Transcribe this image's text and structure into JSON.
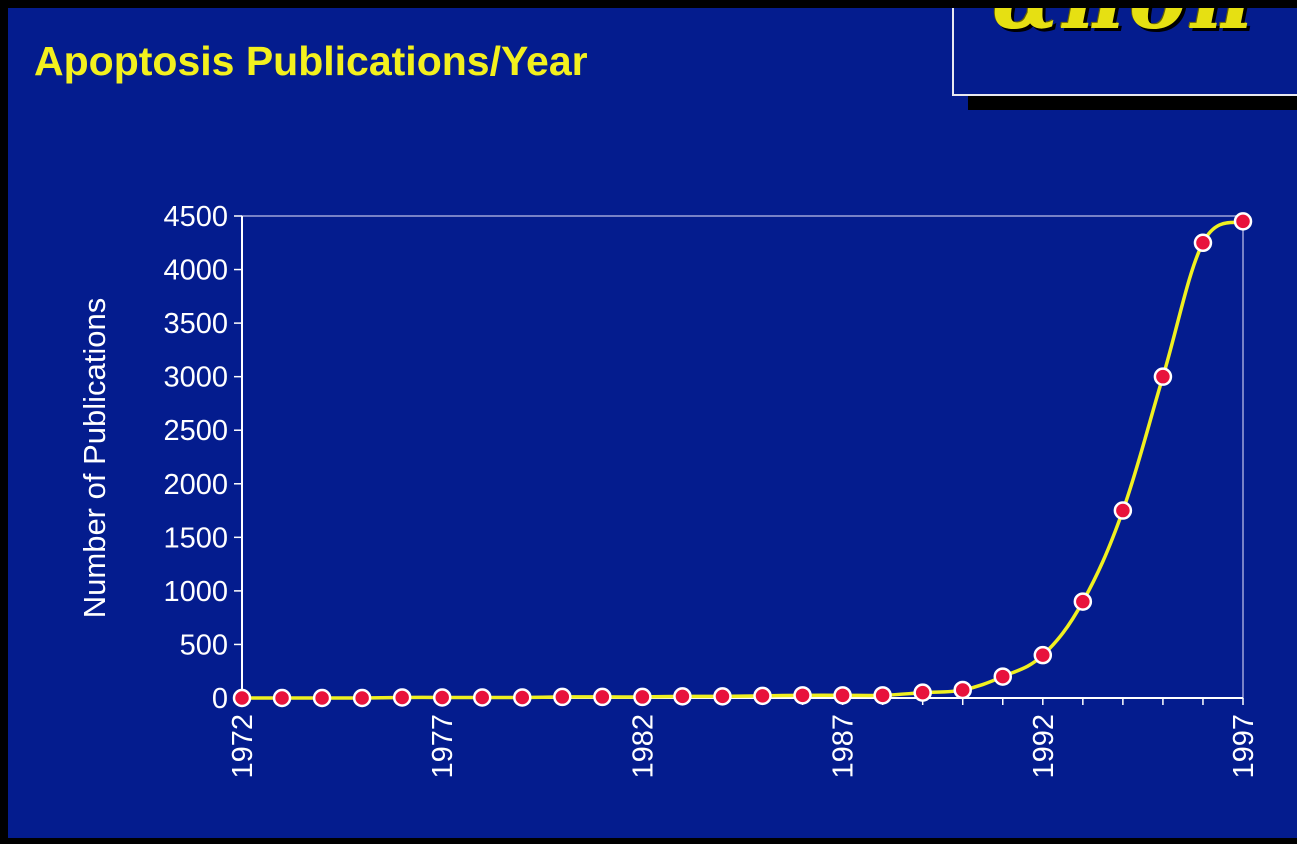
{
  "slide": {
    "title": "Apoptosis Publications/Year",
    "logo_text": "απόπ",
    "background_color": "#041c8e",
    "title_color": "#f3f01e"
  },
  "chart_data": {
    "type": "line",
    "title": "Apoptosis Publications/Year",
    "xlabel": "",
    "ylabel": "Number of Publications",
    "x": [
      1972,
      1973,
      1974,
      1975,
      1976,
      1977,
      1978,
      1979,
      1980,
      1981,
      1982,
      1983,
      1984,
      1985,
      1986,
      1987,
      1988,
      1989,
      1990,
      1991,
      1992,
      1993,
      1994,
      1995,
      1996,
      1997
    ],
    "series": [
      {
        "name": "",
        "values": [
          0,
          0,
          0,
          0,
          5,
          5,
          5,
          5,
          10,
          10,
          10,
          15,
          15,
          20,
          25,
          25,
          25,
          50,
          75,
          200,
          400,
          900,
          1750,
          3000,
          4250,
          4450
        ],
        "line_color": "#f0f020",
        "marker_color": "#e8123c"
      }
    ],
    "ylim": [
      0,
      4500
    ],
    "yticks": [
      0,
      500,
      1000,
      1500,
      2000,
      2500,
      3000,
      3500,
      4000,
      4500
    ],
    "xticks": [
      1972,
      1977,
      1982,
      1987,
      1992,
      1997
    ],
    "xlim": [
      1972,
      1997
    ],
    "grid": false,
    "legend": "none"
  }
}
